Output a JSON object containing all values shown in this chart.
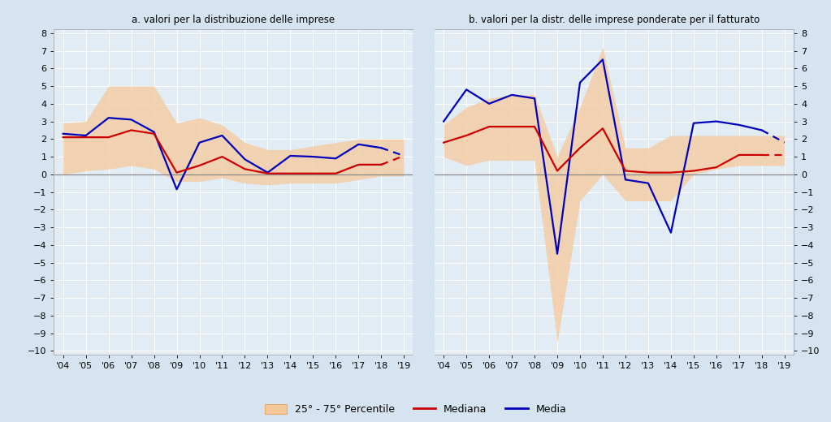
{
  "title_a": "a. valori per la distribuzione delle imprese",
  "title_b": "b. valori per la distr. delle imprese ponderate per il fatturato",
  "years_16": [
    2004,
    2005,
    2006,
    2007,
    2008,
    2009,
    2010,
    2011,
    2012,
    2013,
    2014,
    2015,
    2016,
    2017,
    2018,
    2019
  ],
  "years_15": [
    2004,
    2005,
    2006,
    2007,
    2008,
    2009,
    2010,
    2011,
    2012,
    2013,
    2014,
    2015,
    2016,
    2017,
    2018
  ],
  "years_dashed": [
    2018,
    2019
  ],
  "xtick_labels": [
    "'04",
    "'05",
    "'06",
    "'07",
    "'08",
    "'09",
    "'10",
    "'11",
    "'12",
    "'13",
    "'14",
    "'15",
    "'16",
    "'17",
    "'18",
    "'19"
  ],
  "a_median_solid": [
    2.1,
    2.1,
    2.1,
    2.5,
    2.3,
    0.1,
    0.5,
    1.0,
    0.3,
    0.05,
    0.05,
    0.05,
    0.05,
    0.55,
    0.55
  ],
  "a_median_dashed": [
    0.55,
    1.05
  ],
  "a_mean_solid": [
    2.3,
    2.2,
    3.2,
    3.1,
    2.4,
    -0.85,
    1.8,
    2.2,
    0.85,
    0.1,
    1.05,
    1.0,
    0.9,
    1.7,
    1.5
  ],
  "a_mean_dashed": [
    1.5,
    1.05
  ],
  "a_p25": [
    0.0,
    0.2,
    0.3,
    0.5,
    0.3,
    -0.4,
    -0.4,
    -0.2,
    -0.5,
    -0.6,
    -0.5,
    -0.5,
    -0.5,
    -0.3,
    -0.1,
    -0.1
  ],
  "a_p75": [
    2.9,
    3.0,
    5.0,
    5.0,
    5.0,
    2.9,
    3.2,
    2.8,
    1.8,
    1.4,
    1.4,
    1.6,
    1.8,
    2.0,
    2.0,
    2.0
  ],
  "b_median_solid": [
    1.8,
    2.2,
    2.7,
    2.7,
    2.7,
    0.2,
    1.5,
    2.6,
    0.2,
    0.1,
    0.1,
    0.2,
    0.4,
    1.1,
    1.1
  ],
  "b_median_dashed": [
    1.1,
    1.1
  ],
  "b_mean_solid": [
    3.0,
    4.8,
    4.0,
    4.5,
    4.3,
    -4.5,
    5.2,
    6.5,
    -0.3,
    -0.5,
    -3.3,
    2.9,
    3.0,
    2.8,
    2.5
  ],
  "b_mean_dashed": [
    2.5,
    1.8
  ],
  "b_p25": [
    1.0,
    0.5,
    0.8,
    0.8,
    0.8,
    -9.5,
    -1.5,
    0.0,
    -1.5,
    -1.5,
    -1.5,
    0.0,
    0.3,
    0.5,
    0.5,
    0.5
  ],
  "b_p75": [
    2.8,
    3.8,
    4.3,
    4.5,
    4.5,
    1.0,
    3.8,
    7.2,
    1.5,
    1.5,
    2.2,
    2.2,
    2.2,
    2.2,
    2.2,
    2.2
  ],
  "ylim_lo": -10,
  "ylim_hi": 8,
  "yticks": [
    -10,
    -9,
    -8,
    -7,
    -6,
    -5,
    -4,
    -3,
    -2,
    -1,
    0,
    1,
    2,
    3,
    4,
    5,
    6,
    7,
    8
  ],
  "fill_color": "#f5c89a",
  "fill_alpha": 0.75,
  "fill_edge": "#e8a96a",
  "median_color": "#cc0000",
  "mean_color": "#0000bb",
  "bg_color": "#d5e4f0",
  "plot_bg": "#e2ecf5",
  "zero_line_color": "#888888",
  "grid_color": "#ffffff",
  "spine_color": "#aaaaaa",
  "line_width": 1.6
}
